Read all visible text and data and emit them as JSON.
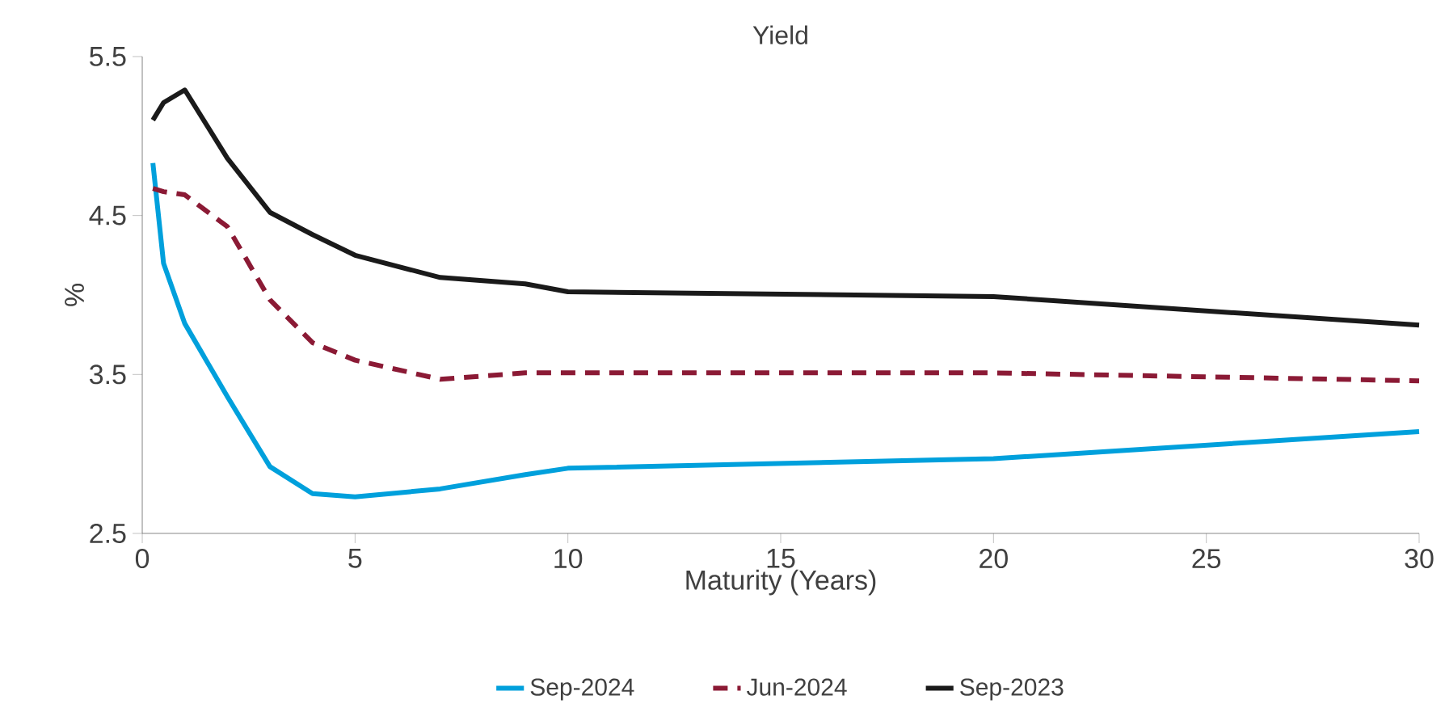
{
  "chart_data": {
    "type": "line",
    "title": "Yield",
    "xlabel": "Maturity (Years)",
    "ylabel": "%",
    "xlim": [
      0,
      30
    ],
    "xticks": [
      0,
      5,
      10,
      15,
      20,
      25,
      30
    ],
    "ylim": [
      2.5,
      5.5
    ],
    "yticks": [
      {
        "value": 2.5,
        "label": "2.5"
      },
      {
        "value": 3.5,
        "label": "3.5"
      },
      {
        "value": 4.5,
        "label": "4.5"
      },
      {
        "value": 5.5,
        "label": "5.5"
      }
    ],
    "grid": false,
    "legend": "bottom",
    "series": [
      {
        "name": "Sep-2024",
        "color": "#00a0dc",
        "line_style": "solid",
        "x": [
          0.25,
          0.5,
          1,
          2,
          3,
          4,
          5,
          7,
          9,
          10,
          20,
          30
        ],
        "values": [
          4.83,
          4.2,
          3.82,
          3.36,
          2.92,
          2.75,
          2.73,
          2.78,
          2.87,
          2.91,
          2.97,
          3.14
        ]
      },
      {
        "name": "Jun-2024",
        "color": "#8b1a35",
        "line_style": "dashed",
        "x": [
          0.25,
          0.5,
          1,
          2,
          3,
          4,
          5,
          7,
          9,
          10,
          20,
          30
        ],
        "values": [
          4.67,
          4.65,
          4.63,
          4.43,
          3.97,
          3.7,
          3.59,
          3.47,
          3.51,
          3.51,
          3.51,
          3.46
        ]
      },
      {
        "name": "Sep-2023",
        "color": "#1a1a1a",
        "line_style": "solid",
        "x": [
          0.25,
          0.5,
          1,
          2,
          3,
          4,
          5,
          7,
          9,
          10,
          20,
          30
        ],
        "values": [
          5.1,
          5.21,
          5.29,
          4.86,
          4.52,
          4.38,
          4.25,
          4.11,
          4.07,
          4.02,
          3.99,
          3.81
        ]
      }
    ]
  }
}
